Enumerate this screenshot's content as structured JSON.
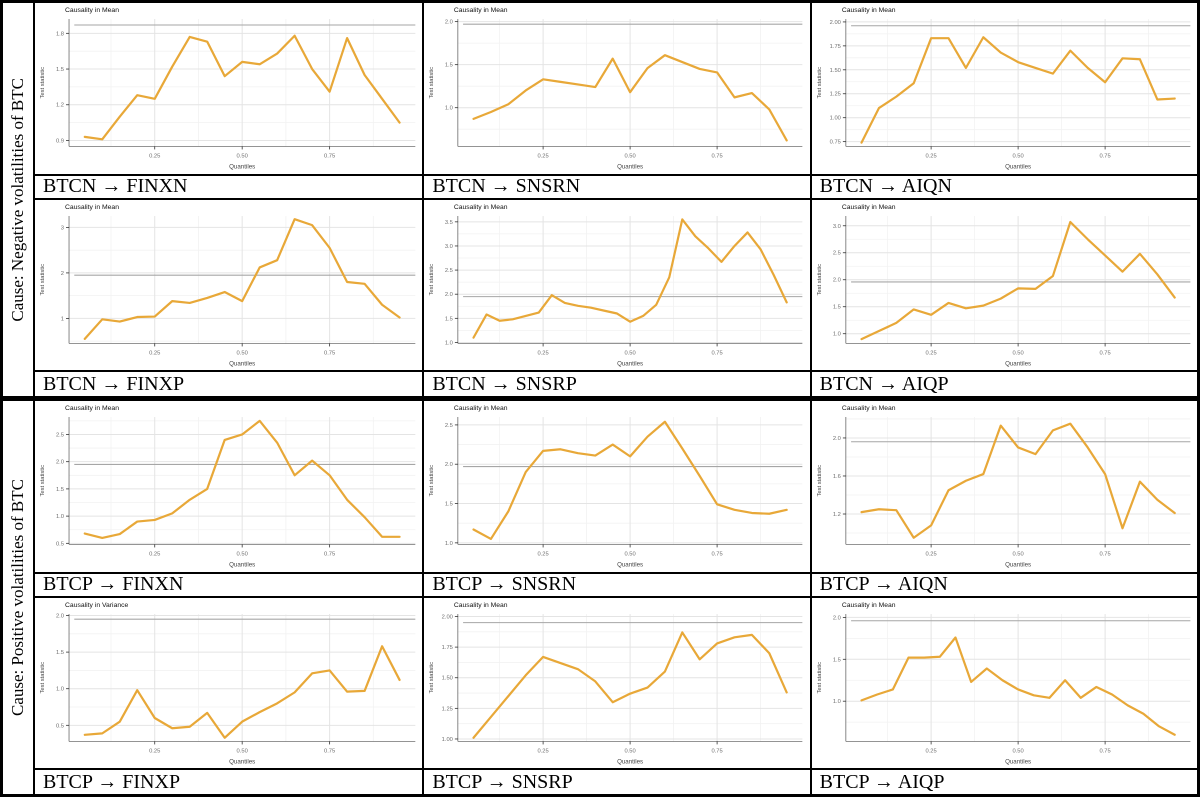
{
  "groups": [
    {
      "label": "Cause: Negative volatilities of BTC"
    },
    {
      "label": "Cause: Positive volatilities of BTC"
    }
  ],
  "shared": {
    "xlabel": "Quantiles",
    "ylabel": "Test statistic",
    "x_ticks": [
      0.25,
      0.5,
      0.75
    ],
    "x_tick_labels": [
      "0.25",
      "0.50",
      "0.75"
    ]
  },
  "colors": {
    "line": "#E8A838",
    "critical_line": "#A6A6A6",
    "grid_major": "#E4E4E4",
    "grid_minor": "#F2F2F2",
    "axis": "#555555",
    "tick_text": "#6E6E6E",
    "title_text": "#111111",
    "border": "#000000"
  },
  "chart_data": [
    {
      "type": "line",
      "title": "Causality in Mean",
      "caption": "BTCN → FINXN",
      "xlabel": "Quantiles",
      "ylabel": "Test statistic",
      "x_start": 0.05,
      "x_end": 0.95,
      "ylim": [
        0.85,
        1.92
      ],
      "y_ticks": [
        0.9,
        1.2,
        1.5,
        1.8
      ],
      "y_tick_labels": [
        "0.9",
        "1.2",
        "1.5",
        "1.8"
      ],
      "critical_value": 1.87,
      "values": [
        0.93,
        0.91,
        1.1,
        1.28,
        1.25,
        1.52,
        1.77,
        1.73,
        1.44,
        1.56,
        1.54,
        1.63,
        1.78,
        1.5,
        1.31,
        1.76,
        1.45,
        1.25,
        1.05
      ]
    },
    {
      "type": "line",
      "title": "Causality in Mean",
      "caption": "BTCN → SNSRN",
      "xlabel": "Quantiles",
      "ylabel": "Test statistic",
      "x_start": 0.05,
      "x_end": 0.95,
      "ylim": [
        0.55,
        2.03
      ],
      "y_ticks": [
        1.0,
        1.5,
        2.0
      ],
      "y_tick_labels": [
        "1.0",
        "1.5",
        "2.0"
      ],
      "critical_value": 1.97,
      "values": [
        0.87,
        0.95,
        1.04,
        1.2,
        1.33,
        1.3,
        1.27,
        1.24,
        1.57,
        1.18,
        1.46,
        1.61,
        1.53,
        1.45,
        1.41,
        1.12,
        1.17,
        0.98,
        0.62
      ]
    },
    {
      "type": "line",
      "title": "Causality in Mean",
      "caption": "BTCN → AIQN",
      "xlabel": "Quantiles",
      "ylabel": "Test statistic",
      "x_start": 0.05,
      "x_end": 0.95,
      "ylim": [
        0.7,
        2.03
      ],
      "y_ticks": [
        0.75,
        1.0,
        1.25,
        1.5,
        1.75,
        2.0
      ],
      "y_tick_labels": [
        "0.75",
        "1.00",
        "1.25",
        "1.50",
        "1.75",
        "2.00"
      ],
      "critical_value": 1.96,
      "values": [
        0.74,
        1.1,
        1.22,
        1.36,
        1.83,
        1.83,
        1.52,
        1.84,
        1.68,
        1.58,
        1.52,
        1.46,
        1.7,
        1.52,
        1.37,
        1.62,
        1.61,
        1.19,
        1.2
      ]
    },
    {
      "type": "line",
      "title": "Causality in Mean",
      "caption": "BTCN → FINXP",
      "xlabel": "Quantiles",
      "ylabel": "Test statistic",
      "x_start": 0.05,
      "x_end": 0.95,
      "ylim": [
        0.45,
        3.25
      ],
      "y_ticks": [
        1,
        2,
        3
      ],
      "y_tick_labels": [
        "1",
        "2",
        "3"
      ],
      "critical_value": 1.95,
      "values": [
        0.55,
        0.98,
        0.93,
        1.03,
        1.04,
        1.38,
        1.34,
        1.45,
        1.58,
        1.38,
        2.12,
        2.28,
        3.18,
        3.05,
        2.55,
        1.8,
        1.76,
        1.3,
        1.02
      ]
    },
    {
      "type": "line",
      "title": "Causality in Mean",
      "caption": "BTCN → SNSRP",
      "xlabel": "Quantiles",
      "ylabel": "Test statistic",
      "x_start": 0.05,
      "x_end": 0.95,
      "ylim": [
        0.98,
        3.62
      ],
      "y_ticks": [
        1.0,
        1.5,
        2.0,
        2.5,
        3.0,
        3.5
      ],
      "y_tick_labels": [
        "1.0",
        "1.5",
        "2.0",
        "2.5",
        "3.0",
        "3.5"
      ],
      "critical_value": 1.95,
      "values": [
        1.1,
        1.58,
        1.45,
        1.48,
        1.55,
        1.62,
        1.98,
        1.82,
        1.76,
        1.72,
        1.66,
        1.6,
        1.43,
        1.55,
        1.78,
        2.35,
        3.55,
        3.2,
        2.95,
        2.67,
        3.0,
        3.28,
        2.93,
        2.4,
        1.83
      ]
    },
    {
      "type": "line",
      "title": "Causality in Mean",
      "caption": "BTCN → AIQP",
      "xlabel": "Quantiles",
      "ylabel": "Test statistic",
      "x_start": 0.05,
      "x_end": 0.95,
      "ylim": [
        0.82,
        3.18
      ],
      "y_ticks": [
        1.0,
        1.5,
        2.0,
        2.5,
        3.0
      ],
      "y_tick_labels": [
        "1.0",
        "1.5",
        "2.0",
        "2.5",
        "3.0"
      ],
      "critical_value": 1.96,
      "values": [
        0.9,
        1.05,
        1.2,
        1.45,
        1.35,
        1.57,
        1.47,
        1.52,
        1.65,
        1.84,
        1.83,
        2.07,
        3.07,
        2.75,
        2.45,
        2.15,
        2.48,
        2.1,
        1.67
      ]
    },
    {
      "type": "line",
      "title": "Causality in Mean",
      "caption": "BTCP → FINXN",
      "xlabel": "Quantiles",
      "ylabel": "Test statistic",
      "x_start": 0.05,
      "x_end": 0.95,
      "ylim": [
        0.48,
        2.82
      ],
      "y_ticks": [
        0.5,
        1.0,
        1.5,
        2.0,
        2.5
      ],
      "y_tick_labels": [
        "0.5",
        "1.0",
        "1.5",
        "2.0",
        "2.5"
      ],
      "critical_value": 1.95,
      "values": [
        0.68,
        0.6,
        0.67,
        0.9,
        0.93,
        1.05,
        1.3,
        1.5,
        2.4,
        2.5,
        2.75,
        2.35,
        1.75,
        2.02,
        1.75,
        1.3,
        0.98,
        0.62,
        0.62
      ]
    },
    {
      "type": "line",
      "title": "Causality in Mean",
      "caption": "BTCP → SNSRN",
      "xlabel": "Quantiles",
      "ylabel": "Test statistic",
      "x_start": 0.05,
      "x_end": 0.95,
      "ylim": [
        0.98,
        2.6
      ],
      "y_ticks": [
        1.0,
        1.5,
        2.0,
        2.5
      ],
      "y_tick_labels": [
        "1.0",
        "1.5",
        "2.0",
        "2.5"
      ],
      "critical_value": 1.97,
      "values": [
        1.17,
        1.05,
        1.4,
        1.9,
        2.17,
        2.19,
        2.14,
        2.11,
        2.25,
        2.1,
        2.35,
        2.54,
        2.2,
        1.85,
        1.49,
        1.42,
        1.38,
        1.37,
        1.42
      ]
    },
    {
      "type": "line",
      "title": "Causality in Mean",
      "caption": "BTCP → AIQN",
      "xlabel": "Quantiles",
      "ylabel": "Test statistic",
      "x_start": 0.05,
      "x_end": 0.95,
      "ylim": [
        0.88,
        2.22
      ],
      "y_ticks": [
        1.2,
        1.6,
        2.0
      ],
      "y_tick_labels": [
        "1.2",
        "1.6",
        "2.0"
      ],
      "critical_value": 1.96,
      "values": [
        1.22,
        1.25,
        1.24,
        0.95,
        1.08,
        1.45,
        1.55,
        1.62,
        2.13,
        1.9,
        1.83,
        2.08,
        2.15,
        1.9,
        1.62,
        1.05,
        1.54,
        1.35,
        1.21
      ]
    },
    {
      "type": "line",
      "title": "Causality in Variance",
      "caption": "BTCP → FINXP",
      "xlabel": "Quantiles",
      "ylabel": "Test statistic",
      "x_start": 0.05,
      "x_end": 0.95,
      "ylim": [
        0.28,
        2.02
      ],
      "y_ticks": [
        0.5,
        1.0,
        1.5,
        2.0
      ],
      "y_tick_labels": [
        "0.5",
        "1.0",
        "1.5",
        "2.0"
      ],
      "critical_value": 1.95,
      "values": [
        0.37,
        0.39,
        0.55,
        0.98,
        0.6,
        0.46,
        0.48,
        0.67,
        0.33,
        0.55,
        0.68,
        0.8,
        0.95,
        1.21,
        1.25,
        0.96,
        0.97,
        1.58,
        1.12
      ]
    },
    {
      "type": "line",
      "title": "Causality in Mean",
      "caption": "BTCP → SNSRP",
      "xlabel": "Quantiles",
      "ylabel": "Test statistic",
      "x_start": 0.05,
      "x_end": 0.95,
      "ylim": [
        0.98,
        2.02
      ],
      "y_ticks": [
        1.0,
        1.25,
        1.5,
        1.75,
        2.0
      ],
      "y_tick_labels": [
        "1.00",
        "1.25",
        "1.50",
        "1.75",
        "2.00"
      ],
      "critical_value": 1.95,
      "values": [
        1.01,
        1.18,
        1.35,
        1.52,
        1.67,
        1.62,
        1.57,
        1.47,
        1.3,
        1.37,
        1.42,
        1.55,
        1.87,
        1.65,
        1.78,
        1.83,
        1.85,
        1.7,
        1.38
      ]
    },
    {
      "type": "line",
      "title": "Causality in Mean",
      "caption": "BTCP → AIQP",
      "xlabel": "Quantiles",
      "ylabel": "Test statistic",
      "x_start": 0.05,
      "x_end": 0.95,
      "ylim": [
        0.52,
        2.04
      ],
      "y_ticks": [
        1.0,
        1.5,
        2.0
      ],
      "y_tick_labels": [
        "1.0",
        "1.5",
        "2.0"
      ],
      "critical_value": 1.96,
      "values": [
        1.01,
        1.08,
        1.14,
        1.52,
        1.52,
        1.53,
        1.76,
        1.23,
        1.39,
        1.25,
        1.14,
        1.07,
        1.04,
        1.25,
        1.04,
        1.17,
        1.08,
        0.95,
        0.85,
        0.7,
        0.6
      ]
    }
  ]
}
